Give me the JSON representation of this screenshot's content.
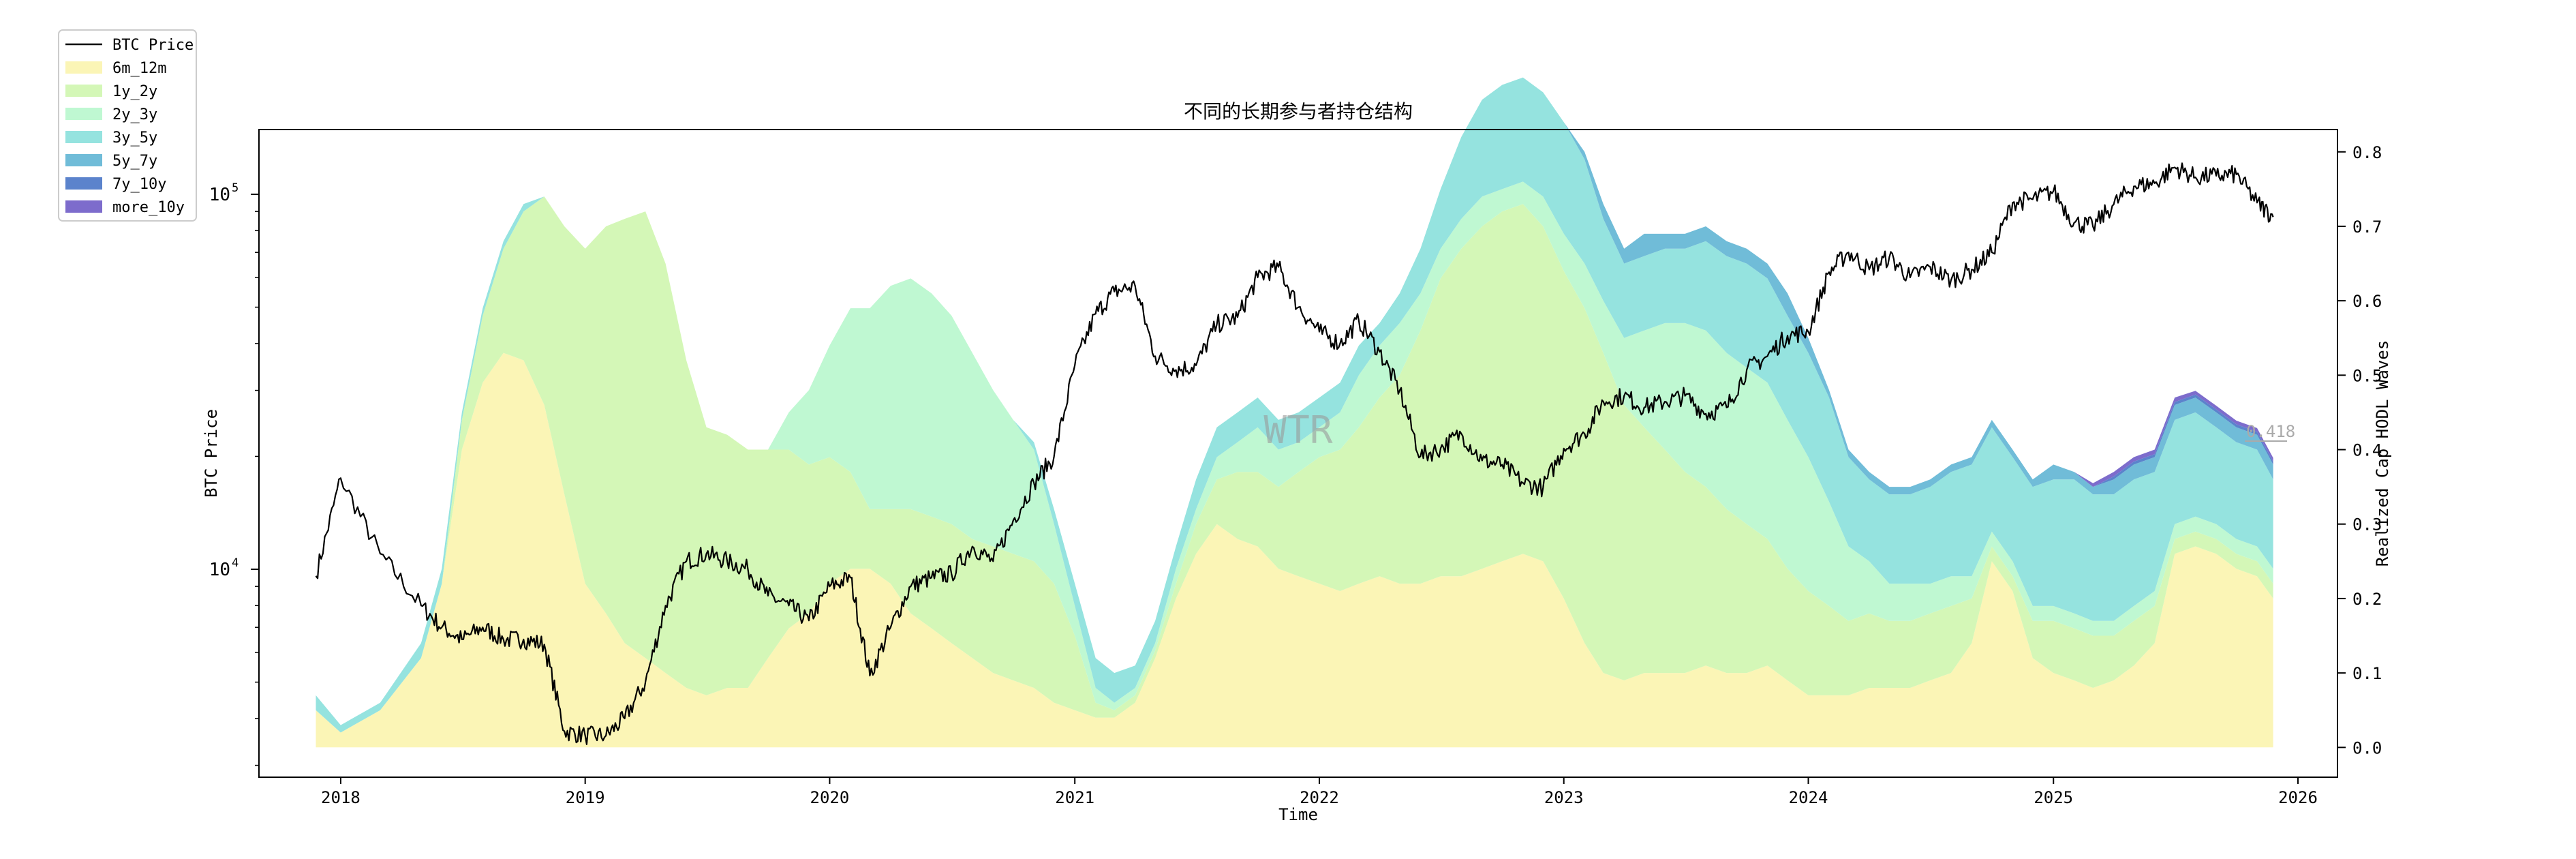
{
  "chart_data": {
    "type": "area",
    "title": "不同的长期参与者持仓结构",
    "xlabel": "Time",
    "ylabel_left": "BTC Price",
    "ylabel_right": "Realized Cap HODL Waves",
    "watermark": "WTR",
    "annotation": "0.418",
    "y_left_scale": "log",
    "y_left_ticks": [
      {
        "value": 10000,
        "base": "10",
        "exp": "4"
      },
      {
        "value": 100000,
        "base": "10",
        "exp": "5"
      }
    ],
    "y_right_ticks": [
      "0.0",
      "0.1",
      "0.2",
      "0.3",
      "0.4",
      "0.5",
      "0.6",
      "0.7",
      "0.8"
    ],
    "y_right_lim": [
      -0.04,
      0.83
    ],
    "x_ticks": [
      "2018",
      "2019",
      "2020",
      "2021",
      "2022",
      "2023",
      "2024",
      "2025",
      "2026"
    ],
    "x_range": [
      "2017-09-01",
      "2026-03-01"
    ],
    "grid": false,
    "legend_position": "outside-top-left",
    "legend": [
      {
        "label": "BTC Price",
        "kind": "line",
        "color": "#000000"
      },
      {
        "label": "6m_12m",
        "kind": "area",
        "color": "#fbf5b6"
      },
      {
        "label": "1y_2y",
        "kind": "area",
        "color": "#d4f7b7"
      },
      {
        "label": "2y_3y",
        "kind": "area",
        "color": "#bff8d2"
      },
      {
        "label": "3y_5y",
        "kind": "area",
        "color": "#95e3df"
      },
      {
        "label": "5y_7y",
        "kind": "area",
        "color": "#70bcd8"
      },
      {
        "label": "7y_10y",
        "kind": "area",
        "color": "#5b83cc"
      },
      {
        "label": "more_10y",
        "kind": "area",
        "color": "#7d6ccc"
      }
    ],
    "dates": [
      "2017-11-25",
      "2018-01-01",
      "2018-03-01",
      "2018-05-01",
      "2018-06-01",
      "2018-07-01",
      "2018-08-01",
      "2018-09-01",
      "2018-10-01",
      "2018-11-01",
      "2018-12-01",
      "2019-01-01",
      "2019-02-01",
      "2019-03-01",
      "2019-04-01",
      "2019-05-01",
      "2019-06-01",
      "2019-07-01",
      "2019-08-01",
      "2019-09-01",
      "2019-10-01",
      "2019-11-01",
      "2019-12-01",
      "2020-01-01",
      "2020-02-01",
      "2020-03-01",
      "2020-04-01",
      "2020-05-01",
      "2020-06-01",
      "2020-07-01",
      "2020-08-01",
      "2020-09-01",
      "2020-10-01",
      "2020-11-01",
      "2020-12-01",
      "2021-01-01",
      "2021-02-01",
      "2021-03-01",
      "2021-04-01",
      "2021-05-01",
      "2021-06-01",
      "2021-07-01",
      "2021-08-01",
      "2021-09-01",
      "2021-10-01",
      "2021-11-01",
      "2021-12-01",
      "2022-01-01",
      "2022-02-01",
      "2022-03-01",
      "2022-04-01",
      "2022-05-01",
      "2022-06-01",
      "2022-07-01",
      "2022-08-01",
      "2022-09-01",
      "2022-10-01",
      "2022-11-01",
      "2022-12-01",
      "2023-01-01",
      "2023-02-01",
      "2023-03-01",
      "2023-04-01",
      "2023-05-01",
      "2023-06-01",
      "2023-07-01",
      "2023-08-01",
      "2023-09-01",
      "2023-10-01",
      "2023-11-01",
      "2023-12-01",
      "2024-01-01",
      "2024-02-01",
      "2024-03-01",
      "2024-04-01",
      "2024-05-01",
      "2024-06-01",
      "2024-07-01",
      "2024-08-01",
      "2024-09-01",
      "2024-10-01",
      "2024-11-01",
      "2024-12-01",
      "2025-01-01",
      "2025-02-01",
      "2025-03-01",
      "2025-04-01",
      "2025-05-01",
      "2025-06-01",
      "2025-07-01",
      "2025-08-01",
      "2025-09-01",
      "2025-10-01",
      "2025-11-01",
      "2025-11-25"
    ],
    "price": [
      9600,
      17500,
      11000,
      8000,
      7000,
      6500,
      7000,
      6500,
      6500,
      6300,
      3700,
      3600,
      3600,
      4000,
      5000,
      8000,
      10500,
      11000,
      10500,
      10000,
      8500,
      8000,
      7300,
      9000,
      9500,
      5200,
      7000,
      9000,
      9500,
      9700,
      11500,
      10500,
      13500,
      17000,
      20000,
      35000,
      48000,
      55000,
      57000,
      37000,
      34000,
      35000,
      45000,
      47000,
      60000,
      64000,
      50000,
      43000,
      40000,
      46000,
      38000,
      30000,
      20000,
      21000,
      23000,
      19500,
      19000,
      17000,
      16500,
      21000,
      23000,
      28000,
      29000,
      27000,
      28000,
      29000,
      26000,
      27000,
      34000,
      37000,
      42000,
      43000,
      62000,
      70000,
      63000,
      68000,
      60000,
      64000,
      59000,
      63000,
      70000,
      95000,
      97000,
      102000,
      84000,
      82000,
      94000,
      105000,
      107000,
      118000,
      111000,
      112000,
      113000,
      95000,
      87000
    ],
    "series": [
      {
        "name": "6m_12m",
        "values": [
          0.05,
          0.02,
          0.05,
          0.12,
          0.22,
          0.4,
          0.49,
          0.53,
          0.52,
          0.46,
          0.34,
          0.22,
          0.18,
          0.14,
          0.12,
          0.1,
          0.08,
          0.07,
          0.08,
          0.08,
          0.12,
          0.16,
          0.18,
          0.22,
          0.24,
          0.24,
          0.22,
          0.18,
          0.16,
          0.14,
          0.12,
          0.1,
          0.09,
          0.08,
          0.06,
          0.05,
          0.04,
          0.04,
          0.06,
          0.12,
          0.2,
          0.26,
          0.3,
          0.28,
          0.27,
          0.24,
          0.23,
          0.22,
          0.21,
          0.22,
          0.23,
          0.22,
          0.22,
          0.23,
          0.23,
          0.24,
          0.25,
          0.26,
          0.25,
          0.2,
          0.14,
          0.1,
          0.09,
          0.1,
          0.1,
          0.1,
          0.11,
          0.1,
          0.1,
          0.11,
          0.09,
          0.07,
          0.07,
          0.07,
          0.08,
          0.08,
          0.08,
          0.09,
          0.1,
          0.14,
          0.25,
          0.21,
          0.12,
          0.1,
          0.09,
          0.08,
          0.09,
          0.11,
          0.14,
          0.26,
          0.27,
          0.26,
          0.24,
          0.23,
          0.2
        ]
      },
      {
        "name": "1y_2y",
        "values": [
          0.0,
          0.0,
          0.0,
          0.0,
          0.0,
          0.04,
          0.09,
          0.14,
          0.2,
          0.28,
          0.36,
          0.45,
          0.52,
          0.57,
          0.6,
          0.55,
          0.44,
          0.36,
          0.34,
          0.32,
          0.28,
          0.24,
          0.2,
          0.17,
          0.13,
          0.08,
          0.1,
          0.14,
          0.15,
          0.16,
          0.16,
          0.17,
          0.17,
          0.17,
          0.16,
          0.1,
          0.02,
          0.01,
          0.01,
          0.01,
          0.02,
          0.04,
          0.06,
          0.09,
          0.1,
          0.11,
          0.14,
          0.17,
          0.19,
          0.21,
          0.24,
          0.28,
          0.34,
          0.4,
          0.44,
          0.46,
          0.47,
          0.47,
          0.45,
          0.44,
          0.45,
          0.43,
          0.37,
          0.33,
          0.3,
          0.27,
          0.24,
          0.22,
          0.2,
          0.17,
          0.15,
          0.14,
          0.12,
          0.1,
          0.1,
          0.09,
          0.09,
          0.09,
          0.09,
          0.06,
          0.02,
          0.02,
          0.05,
          0.07,
          0.07,
          0.07,
          0.06,
          0.06,
          0.05,
          0.02,
          0.02,
          0.02,
          0.02,
          0.02,
          0.02
        ]
      },
      {
        "name": "2y_3y",
        "values": [
          0.0,
          0.0,
          0.0,
          0.0,
          0.0,
          0.0,
          0.0,
          0.0,
          0.0,
          0.0,
          0.0,
          0.0,
          0.0,
          0.0,
          0.0,
          0.0,
          0.0,
          0.0,
          0.0,
          0.0,
          0.0,
          0.05,
          0.1,
          0.15,
          0.22,
          0.27,
          0.3,
          0.31,
          0.3,
          0.28,
          0.25,
          0.21,
          0.18,
          0.15,
          0.08,
          0.04,
          0.02,
          0.01,
          0.01,
          0.01,
          0.02,
          0.02,
          0.03,
          0.04,
          0.06,
          0.05,
          0.04,
          0.04,
          0.05,
          0.07,
          0.07,
          0.07,
          0.05,
          0.04,
          0.04,
          0.04,
          0.03,
          0.03,
          0.04,
          0.05,
          0.06,
          0.07,
          0.09,
          0.13,
          0.17,
          0.2,
          0.21,
          0.21,
          0.21,
          0.21,
          0.2,
          0.18,
          0.14,
          0.1,
          0.07,
          0.05,
          0.05,
          0.04,
          0.04,
          0.03,
          0.02,
          0.02,
          0.02,
          0.02,
          0.02,
          0.02,
          0.02,
          0.02,
          0.02,
          0.02,
          0.02,
          0.02,
          0.02,
          0.02,
          0.02
        ]
      },
      {
        "name": "3y_5y",
        "values": [
          0.02,
          0.01,
          0.01,
          0.02,
          0.02,
          0.01,
          0.01,
          0.01,
          0.01,
          0.0,
          0.0,
          0.0,
          0.0,
          0.0,
          0.0,
          0.0,
          0.0,
          0.0,
          0.0,
          0.0,
          0.0,
          0.0,
          0.0,
          0.0,
          0.0,
          0.0,
          0.0,
          0.0,
          0.0,
          0.0,
          0.0,
          0.0,
          0.0,
          0.01,
          0.02,
          0.03,
          0.04,
          0.04,
          0.03,
          0.03,
          0.03,
          0.04,
          0.04,
          0.04,
          0.04,
          0.04,
          0.04,
          0.04,
          0.04,
          0.04,
          0.03,
          0.04,
          0.06,
          0.08,
          0.11,
          0.13,
          0.14,
          0.14,
          0.14,
          0.15,
          0.14,
          0.11,
          0.1,
          0.1,
          0.1,
          0.1,
          0.12,
          0.13,
          0.14,
          0.14,
          0.14,
          0.14,
          0.14,
          0.12,
          0.11,
          0.12,
          0.12,
          0.13,
          0.14,
          0.15,
          0.14,
          0.14,
          0.16,
          0.17,
          0.18,
          0.17,
          0.17,
          0.17,
          0.16,
          0.14,
          0.14,
          0.13,
          0.13,
          0.13,
          0.12
        ]
      },
      {
        "name": "5y_7y",
        "values": [
          0.0,
          0.0,
          0.0,
          0.0,
          0.0,
          0.0,
          0.0,
          0.0,
          0.0,
          0.0,
          0.0,
          0.0,
          0.0,
          0.0,
          0.0,
          0.0,
          0.0,
          0.0,
          0.0,
          0.0,
          0.0,
          0.0,
          0.0,
          0.0,
          0.0,
          0.0,
          0.0,
          0.0,
          0.0,
          0.0,
          0.0,
          0.0,
          0.0,
          0.0,
          0.0,
          0.0,
          0.0,
          0.0,
          0.0,
          0.0,
          0.0,
          0.0,
          0.0,
          0.0,
          0.0,
          0.0,
          0.0,
          0.0,
          0.0,
          0.0,
          0.0,
          0.0,
          0.0,
          0.0,
          0.0,
          0.0,
          0.0,
          0.0,
          0.0,
          0.0,
          0.01,
          0.02,
          0.02,
          0.03,
          0.02,
          0.02,
          0.02,
          0.02,
          0.02,
          0.02,
          0.03,
          0.02,
          0.01,
          0.01,
          0.01,
          0.01,
          0.01,
          0.01,
          0.01,
          0.01,
          0.01,
          0.01,
          0.01,
          0.02,
          0.01,
          0.01,
          0.02,
          0.02,
          0.02,
          0.02,
          0.02,
          0.02,
          0.02,
          0.02,
          0.02
        ]
      },
      {
        "name": "7y_10y",
        "values": [
          0.0,
          0.0,
          0.0,
          0.0,
          0.0,
          0.0,
          0.0,
          0.0,
          0.0,
          0.0,
          0.0,
          0.0,
          0.0,
          0.0,
          0.0,
          0.0,
          0.0,
          0.0,
          0.0,
          0.0,
          0.0,
          0.0,
          0.0,
          0.0,
          0.0,
          0.0,
          0.0,
          0.0,
          0.0,
          0.0,
          0.0,
          0.0,
          0.0,
          0.0,
          0.0,
          0.0,
          0.0,
          0.0,
          0.0,
          0.0,
          0.0,
          0.0,
          0.0,
          0.0,
          0.0,
          0.0,
          0.0,
          0.0,
          0.0,
          0.0,
          0.0,
          0.0,
          0.0,
          0.0,
          0.0,
          0.0,
          0.0,
          0.0,
          0.0,
          0.0,
          0.0,
          0.0,
          0.0,
          0.0,
          0.0,
          0.0,
          0.0,
          0.0,
          0.0,
          0.0,
          0.0,
          0.0,
          0.0,
          0.0,
          0.0,
          0.0,
          0.0,
          0.0,
          0.0,
          0.0,
          0.0,
          0.0,
          0.0,
          0.0,
          0.0,
          0.0,
          0.004,
          0.004,
          0.004,
          0.004,
          0.004,
          0.004,
          0.004,
          0.004,
          0.004
        ]
      },
      {
        "name": "more_10y",
        "values": [
          0.0,
          0.0,
          0.0,
          0.0,
          0.0,
          0.0,
          0.0,
          0.0,
          0.0,
          0.0,
          0.0,
          0.0,
          0.0,
          0.0,
          0.0,
          0.0,
          0.0,
          0.0,
          0.0,
          0.0,
          0.0,
          0.0,
          0.0,
          0.0,
          0.0,
          0.0,
          0.0,
          0.0,
          0.0,
          0.0,
          0.0,
          0.0,
          0.0,
          0.0,
          0.0,
          0.0,
          0.0,
          0.0,
          0.0,
          0.0,
          0.0,
          0.0,
          0.0,
          0.0,
          0.0,
          0.0,
          0.0,
          0.0,
          0.0,
          0.0,
          0.0,
          0.0,
          0.0,
          0.0,
          0.0,
          0.0,
          0.0,
          0.0,
          0.0,
          0.0,
          0.0,
          0.0,
          0.0,
          0.0,
          0.0,
          0.0,
          0.0,
          0.0,
          0.0,
          0.0,
          0.0,
          0.0,
          0.0,
          0.0,
          0.0,
          0.0,
          0.0,
          0.0,
          0.0,
          0.0,
          0.0,
          0.0,
          0.0,
          0.0,
          0.0,
          0.005,
          0.006,
          0.006,
          0.006,
          0.006,
          0.005,
          0.005,
          0.005,
          0.005,
          0.005
        ]
      }
    ]
  }
}
